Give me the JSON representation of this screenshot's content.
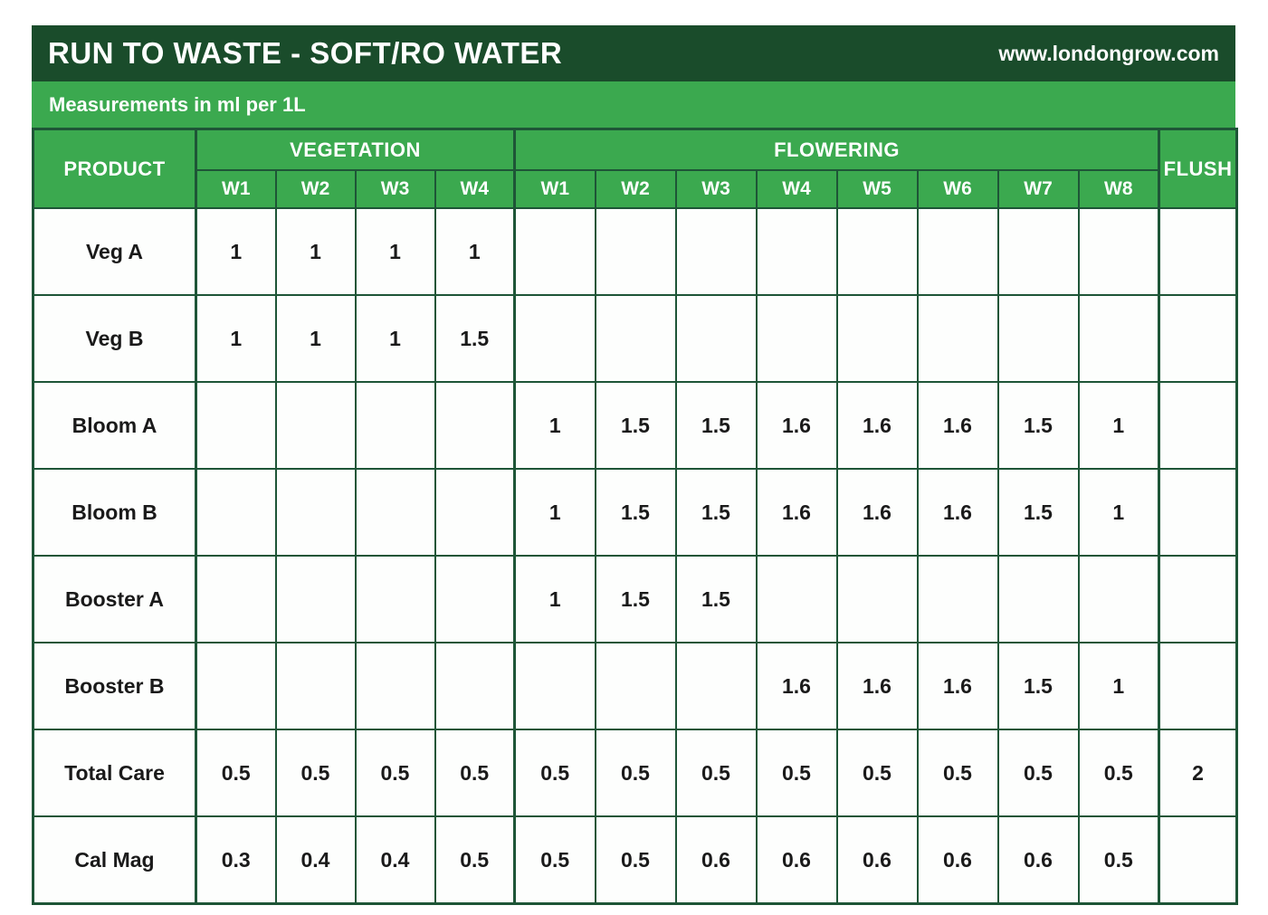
{
  "chart_data": {
    "type": "table",
    "title": "RUN TO WASTE - SOFT/RO WATER",
    "website": "www.londongrow.com",
    "subtitle": "Measurements in ml per 1L",
    "columns": {
      "product": "PRODUCT",
      "groups": [
        {
          "label": "VEGETATION",
          "weeks": [
            "W1",
            "W2",
            "W3",
            "W4"
          ]
        },
        {
          "label": "FLOWERING",
          "weeks": [
            "W1",
            "W2",
            "W3",
            "W4",
            "W5",
            "W6",
            "W7",
            "W8"
          ]
        }
      ],
      "flush": "FLUSH"
    },
    "rows": [
      {
        "product": "Veg A",
        "values": [
          "1",
          "1",
          "1",
          "1",
          "",
          "",
          "",
          "",
          "",
          "",
          "",
          "",
          ""
        ]
      },
      {
        "product": "Veg B",
        "values": [
          "1",
          "1",
          "1",
          "1.5",
          "",
          "",
          "",
          "",
          "",
          "",
          "",
          "",
          ""
        ]
      },
      {
        "product": "Bloom A",
        "values": [
          "",
          "",
          "",
          "",
          "1",
          "1.5",
          "1.5",
          "1.6",
          "1.6",
          "1.6",
          "1.5",
          "1",
          ""
        ]
      },
      {
        "product": "Bloom B",
        "values": [
          "",
          "",
          "",
          "",
          "1",
          "1.5",
          "1.5",
          "1.6",
          "1.6",
          "1.6",
          "1.5",
          "1",
          ""
        ]
      },
      {
        "product": "Booster A",
        "values": [
          "",
          "",
          "",
          "",
          "1",
          "1.5",
          "1.5",
          "",
          "",
          "",
          "",
          "",
          ""
        ]
      },
      {
        "product": "Booster B",
        "values": [
          "",
          "",
          "",
          "",
          "",
          "",
          "",
          "1.6",
          "1.6",
          "1.6",
          "1.5",
          "1",
          ""
        ]
      },
      {
        "product": "Total Care",
        "values": [
          "0.5",
          "0.5",
          "0.5",
          "0.5",
          "0.5",
          "0.5",
          "0.5",
          "0.5",
          "0.5",
          "0.5",
          "0.5",
          "0.5",
          "2"
        ]
      },
      {
        "product": "Cal Mag",
        "values": [
          "0.3",
          "0.4",
          "0.4",
          "0.5",
          "0.5",
          "0.5",
          "0.6",
          "0.6",
          "0.6",
          "0.6",
          "0.6",
          "0.5",
          ""
        ]
      }
    ]
  },
  "colors": {
    "title_bar_bg": "#1A4C2B",
    "accent_green": "#3BA94F",
    "border_green": "#1E5537",
    "header_text": "#FFFFFF",
    "value_text": "#1A1A1A",
    "cell_bg": "#FDFEFD"
  }
}
